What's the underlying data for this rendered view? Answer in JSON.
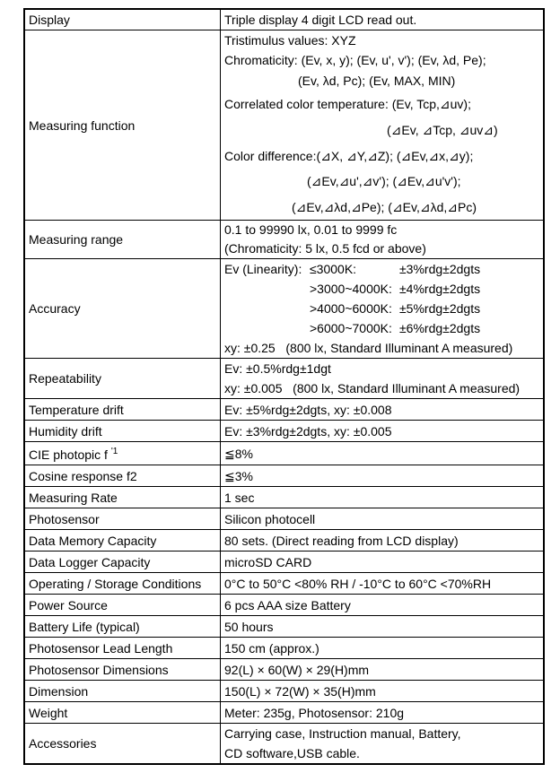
{
  "rows": {
    "display": {
      "label": "Display",
      "value": "Triple display 4 digit LCD read out."
    },
    "measuring_function": {
      "label": "Measuring function",
      "lines": [
        "Tristimulus values: XYZ",
        "Chromaticity: (Ev, x, y); (Ev, u', v'); (Ev, λd, Pe);",
        "(Ev, λd, Pc); (Ev, MAX, MIN)",
        "Correlated color temperature: (Ev, Tcp,⊿uv);",
        "(⊿Ev, ⊿Tcp, ⊿uv⊿)",
        "Color difference:(⊿X, ⊿Y,⊿Z); (⊿Ev,⊿x,⊿y);",
        "(⊿Ev,⊿u',⊿v'); (⊿Ev,⊿u'v');",
        "(⊿Ev,⊿λd,⊿Pe); (⊿Ev,⊿λd,⊿Pc)"
      ]
    },
    "measuring_range": {
      "label": "Measuring range",
      "lines": [
        "0.1 to 99990 lx, 0.01 to 9999 fc",
        "(Chromaticity: 5 lx, 0.5 fcd or above)"
      ]
    },
    "accuracy": {
      "label": "Accuracy",
      "prefix": "Ev (Linearity):",
      "entries": [
        {
          "range": "≤3000K:",
          "value": "±3%rdg±2dgts"
        },
        {
          "range": ">3000~4000K:",
          "value": "±4%rdg±2dgts"
        },
        {
          "range": ">4000~6000K:",
          "value": "±5%rdg±2dgts"
        },
        {
          "range": ">6000~7000K:",
          "value": "±6%rdg±2dgts"
        }
      ],
      "xy": "xy: ±0.25   (800 lx, Standard Illuminant A measured)"
    },
    "repeatability": {
      "label": "Repeatability",
      "lines": [
        "Ev: ±0.5%rdg±1dgt",
        "xy: ±0.005   (800 lx, Standard Illuminant A measured)"
      ]
    },
    "temperature_drift": {
      "label": "Temperature drift",
      "value": "Ev: ±5%rdg±2dgts, xy: ±0.008"
    },
    "humidity_drift": {
      "label": "Humidity drift",
      "value": "Ev: ±3%rdg±2dgts, xy: ±0.005"
    },
    "cie_photopic": {
      "label": "CIE photopic f",
      "sup": "'1",
      "value": "≦8%"
    },
    "cosine_response": {
      "label": "Cosine response f2",
      "value": "≦3%"
    },
    "measuring_rate": {
      "label": "Measuring Rate",
      "value": "1 sec"
    },
    "photosensor": {
      "label": "Photosensor",
      "value": "Silicon photocell"
    },
    "data_memory": {
      "label": "Data Memory Capacity",
      "value": "80 sets. (Direct reading from LCD display)"
    },
    "data_logger": {
      "label": "Data Logger Capacity",
      "value": "microSD CARD"
    },
    "operating": {
      "label": "Operating / Storage Conditions",
      "value": "0°C to 50°C <80% RH / -10°C to 60°C <70%RH"
    },
    "power": {
      "label": "Power Source",
      "value": "6 pcs AAA size Battery"
    },
    "battery_life": {
      "label": "Battery Life (typical)",
      "value": "50 hours"
    },
    "lead_length": {
      "label": "Photosensor Lead Length",
      "value": "150 cm (approx.)"
    },
    "photosensor_dim": {
      "label": "Photosensor Dimensions",
      "value": "92(L) × 60(W) × 29(H)mm"
    },
    "dimension": {
      "label": "Dimension",
      "value": "150(L) × 72(W) × 35(H)mm"
    },
    "weight": {
      "label": "Weight",
      "value": "Meter: 235g, Photosensor: 210g"
    },
    "accessories": {
      "label": "Accessories",
      "lines": [
        "Carrying case, Instruction manual, Battery,",
        "CD software,USB cable."
      ]
    }
  }
}
